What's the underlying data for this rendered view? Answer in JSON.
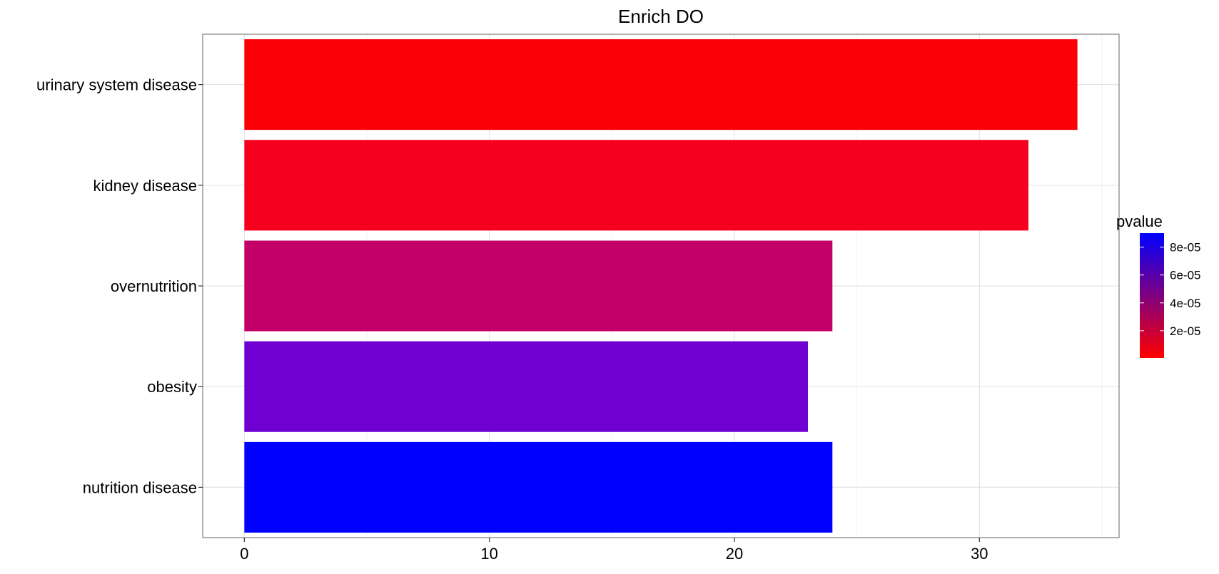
{
  "chart_data": {
    "type": "bar",
    "orientation": "horizontal",
    "title": "Enrich DO",
    "xlabel": "",
    "ylabel": "",
    "categories": [
      "urinary system disease",
      "kidney disease",
      "overnutrition",
      "obesity",
      "nutrition disease"
    ],
    "values": [
      34,
      32,
      24,
      23,
      24
    ],
    "pvalues": [
      5e-07,
      4e-06,
      4e-05,
      7e-05,
      9e-05
    ],
    "colors": [
      "#fb0007",
      "#f5001f",
      "#c30068",
      "#6f00d1",
      "#0000ff"
    ],
    "xlim": [
      -1.7,
      35.7
    ],
    "xticks": [
      "0",
      "10",
      "20",
      "30"
    ],
    "xtick_values": [
      0,
      10,
      20,
      30
    ],
    "grid": true,
    "legend": {
      "title": "pvalue",
      "position": "right",
      "labels": [
        "8e-05",
        "6e-05",
        "4e-05",
        "2e-05"
      ],
      "values": [
        8e-05,
        6e-05,
        4e-05,
        2e-05
      ],
      "range": [
        5e-07,
        9e-05
      ],
      "low_color": "#ff0000",
      "high_color": "#0000ff"
    }
  }
}
